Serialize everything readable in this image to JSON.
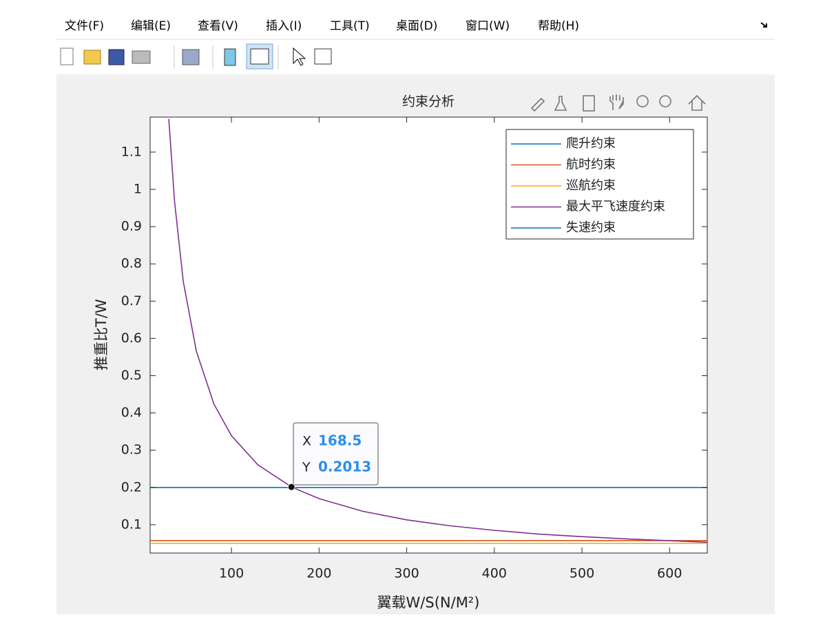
{
  "menu": [
    "文件(F)",
    "编辑(E)",
    "查看(V)",
    "插入(I)",
    "工具(T)",
    "桌面(D)",
    "窗口(W)",
    "帮助(H)"
  ],
  "chart_data": {
    "type": "line",
    "title": "约束分析",
    "xlabel": "翼载W/S(N/M²)",
    "ylabel": "推重比T/W",
    "x": [
      7.2,
      28.5,
      35,
      45,
      60,
      80,
      100,
      130,
      168.5,
      200,
      250,
      300,
      350,
      400,
      450,
      500,
      550,
      600,
      643
    ],
    "series": [
      {
        "name": "爬升约束",
        "color": "#0072bd",
        "values": [
          0.2,
          0.2,
          0.2,
          0.2,
          0.2,
          0.2,
          0.2,
          0.2,
          0.2,
          0.2,
          0.2,
          0.2,
          0.2,
          0.2,
          0.2,
          0.2,
          0.2,
          0.2,
          0.2
        ]
      },
      {
        "name": "航时约束",
        "color": "#d95319",
        "values": [
          0.0575,
          0.0575,
          0.0575,
          0.0575,
          0.0575,
          0.0575,
          0.0575,
          0.0575,
          0.0575,
          0.0575,
          0.0575,
          0.0575,
          0.0575,
          0.0575,
          0.0575,
          0.0575,
          0.0575,
          0.0575,
          0.0575
        ]
      },
      {
        "name": "巡航约束",
        "color": "#edb120",
        "values": [
          0.05,
          0.05,
          0.05,
          0.05,
          0.05,
          0.05,
          0.05,
          0.05,
          0.05,
          0.05,
          0.05,
          0.05,
          0.05,
          0.05,
          0.05,
          0.05,
          0.05,
          0.05,
          0.05
        ]
      },
      {
        "name": "最大平飞速度约束",
        "color": "#7e2f8e",
        "values": [
          null,
          1.189,
          0.969,
          0.753,
          0.565,
          0.424,
          0.339,
          0.261,
          0.2013,
          0.17,
          0.136,
          0.113,
          0.097,
          0.085,
          0.075,
          0.068,
          0.062,
          0.057,
          0.053
        ]
      },
      {
        "name": "失速约束",
        "color": "#0072bd"
      }
    ],
    "xlim": [
      7.2,
      643
    ],
    "ylim": [
      0.024,
      1.194
    ],
    "xticks": [
      100,
      200,
      300,
      400,
      500,
      600
    ],
    "yticks": [
      0.1,
      0.2,
      0.3,
      0.4,
      0.5,
      0.6,
      0.7,
      0.8,
      0.9,
      1,
      1.1
    ],
    "legend": "upper right",
    "datatip": {
      "x_label": "X",
      "x": 168.5,
      "y_label": "Y",
      "y": 0.2013
    }
  }
}
